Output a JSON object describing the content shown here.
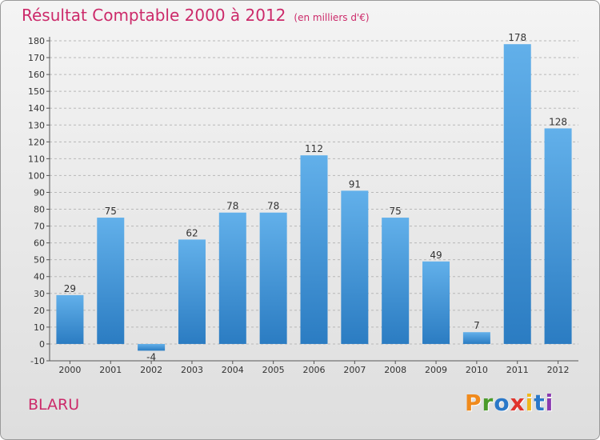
{
  "header": {
    "title": "Résultat Comptable 2000 à 2012",
    "subtitle": "(en milliers d'€)"
  },
  "commune": "BLARU",
  "logo": {
    "letters": [
      "P",
      "r",
      "o",
      "x",
      "i",
      "t",
      "i"
    ],
    "colors": [
      "#f08a1c",
      "#4a9a2a",
      "#2a78c8",
      "#e0342c",
      "#f0b81c",
      "#2a78c8",
      "#8a3ab0"
    ]
  },
  "colors": {
    "bar_light": "#62b0ea",
    "bar_dark": "#2b7cc2",
    "title": "#cc2a6a",
    "grid": "#b8b8b8"
  },
  "chart_data": {
    "type": "bar",
    "categories": [
      "2000",
      "2001",
      "2002",
      "2003",
      "2004",
      "2005",
      "2006",
      "2007",
      "2008",
      "2009",
      "2010",
      "2011",
      "2012"
    ],
    "values": [
      29,
      75,
      -4,
      62,
      78,
      78,
      112,
      91,
      75,
      49,
      7,
      178,
      128
    ],
    "ylim": [
      -10,
      180
    ],
    "yticks": [
      -10,
      0,
      10,
      20,
      30,
      40,
      50,
      60,
      70,
      80,
      90,
      100,
      110,
      120,
      130,
      140,
      150,
      160,
      170,
      180
    ],
    "grid": "horizontal dashed",
    "title": "Résultat Comptable 2000 à 2012",
    "xlabel": "",
    "ylabel": ""
  }
}
